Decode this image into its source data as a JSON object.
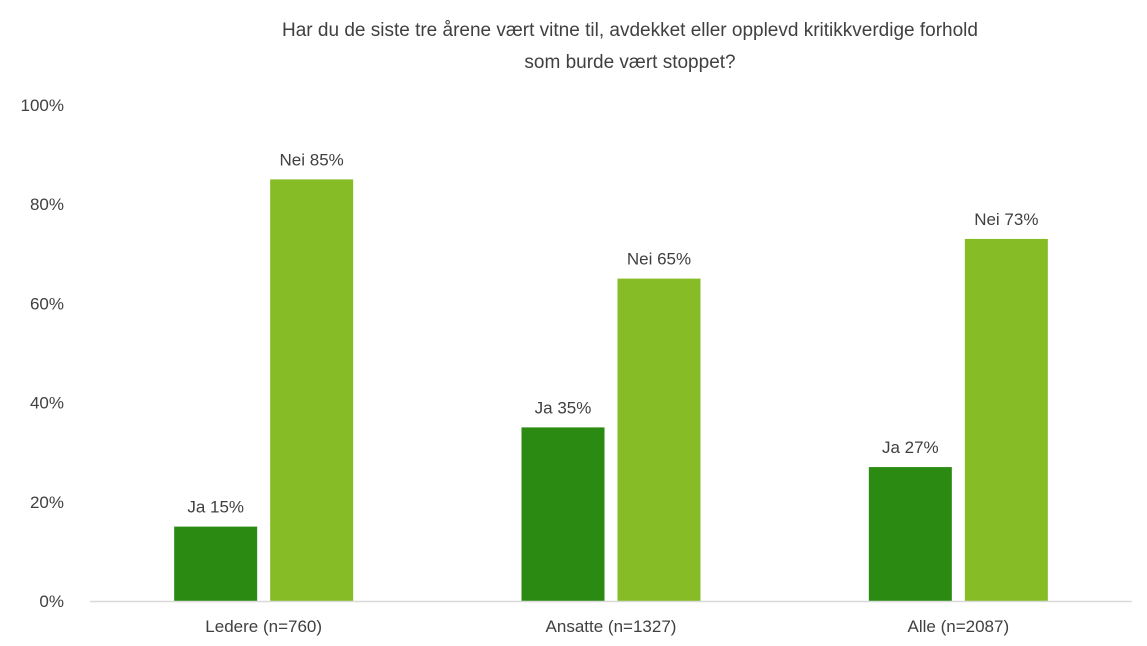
{
  "chart_data": {
    "type": "bar",
    "title_lines": [
      "Har du de siste tre årene vært vitne til, avdekket eller opplevd kritikkverdige forhold",
      "som burde vært stoppet?"
    ],
    "categories": [
      "Ledere (n=760)",
      "Ansatte (n=1327)",
      "Alle (n=2087)"
    ],
    "series": [
      {
        "name": "Ja",
        "values": [
          15,
          35,
          27
        ],
        "labels": [
          "Ja 15%",
          "Ja 35%",
          "Ja 27%"
        ],
        "color": "#2a8a12"
      },
      {
        "name": "Nei",
        "values": [
          85,
          65,
          73
        ],
        "labels": [
          "Nei 85%",
          "Nei 65%",
          "Nei 73%"
        ],
        "color": "#86bc25"
      }
    ],
    "y_ticks": [
      "0%",
      "20%",
      "40%",
      "60%",
      "80%",
      "100%"
    ],
    "ylim": [
      0,
      100
    ],
    "axis_color": "#d9d9d9",
    "grid": false,
    "legend": "none"
  }
}
